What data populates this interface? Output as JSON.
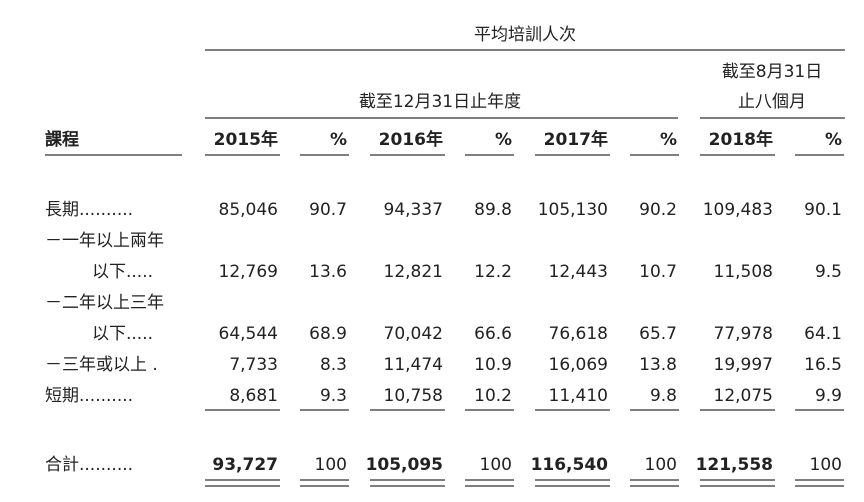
{
  "header": {
    "title": "平均培訓人次",
    "group_year": "截至12月31日止年度",
    "group_period": [
      "截至8月31日",
      "止八個月"
    ]
  },
  "table": {
    "columns": [
      "課程",
      "2015年",
      "%",
      "2016年",
      "%",
      "2017年",
      "%",
      "2018年",
      "%"
    ],
    "rows": [
      {
        "label": [
          "長期.........."
        ],
        "values": [
          "85,046",
          "90.7",
          "94,337",
          "89.8",
          "105,130",
          "90.2",
          "109,483",
          "90.1"
        ]
      },
      {
        "label": [
          "－一年以上兩年",
          "以下....."
        ],
        "values": [
          "12,769",
          "13.6",
          "12,821",
          "12.2",
          "12,443",
          "10.7",
          "11,508",
          "9.5"
        ]
      },
      {
        "label": [
          "－二年以上三年",
          "以下....."
        ],
        "values": [
          "64,544",
          "68.9",
          "70,042",
          "66.6",
          "76,618",
          "65.7",
          "77,978",
          "64.1"
        ]
      },
      {
        "label": [
          "－三年或以上 ."
        ],
        "values": [
          "7,733",
          "8.3",
          "11,474",
          "10.9",
          "16,069",
          "13.8",
          "19,997",
          "16.5"
        ]
      },
      {
        "label": [
          "短期.........."
        ],
        "values": [
          "8,681",
          "9.3",
          "10,758",
          "10.2",
          "11,410",
          "9.8",
          "12,075",
          "9.9"
        ]
      }
    ],
    "total": {
      "label": "合計..........",
      "values": [
        "93,727",
        "100",
        "105,095",
        "100",
        "116,540",
        "100",
        "121,558",
        "100"
      ]
    }
  }
}
